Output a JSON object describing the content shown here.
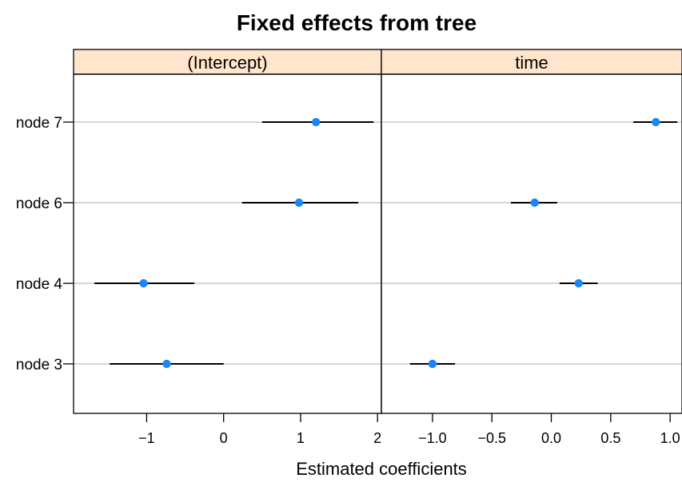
{
  "chart_data": {
    "type": "dotplot-with-intervals",
    "title": "Fixed effects from tree",
    "xlabel": "Estimated coefficients",
    "ylabel": "",
    "row_labels": [
      "node 7",
      "node 6",
      "node 4",
      "node 3"
    ],
    "grid": true,
    "panels": [
      {
        "name": "(Intercept)",
        "xlim": [
          -1.95,
          2.05
        ],
        "xticks": [
          -1,
          0,
          1,
          2
        ],
        "xtick_labels": [
          "−1",
          "0",
          "1",
          "2"
        ],
        "points": [
          {
            "row": "node 7",
            "estimate": 1.2,
            "lower": 0.5,
            "upper": 1.95
          },
          {
            "row": "node 6",
            "estimate": 0.98,
            "lower": 0.24,
            "upper": 1.75
          },
          {
            "row": "node 4",
            "estimate": -1.04,
            "lower": -1.68,
            "upper": -0.38
          },
          {
            "row": "node 3",
            "estimate": -0.74,
            "lower": -1.48,
            "upper": 0.0
          }
        ]
      },
      {
        "name": "time",
        "xlim": [
          -1.43,
          1.1
        ],
        "xticks": [
          -1.0,
          -0.5,
          0.0,
          0.5,
          1.0
        ],
        "xtick_labels": [
          "−1.0",
          "−0.5",
          "0.0",
          "0.5",
          "1.0"
        ],
        "points": [
          {
            "row": "node 7",
            "estimate": 0.88,
            "lower": 0.69,
            "upper": 1.06
          },
          {
            "row": "node 6",
            "estimate": -0.14,
            "lower": -0.34,
            "upper": 0.05
          },
          {
            "row": "node 4",
            "estimate": 0.23,
            "lower": 0.07,
            "upper": 0.39
          },
          {
            "row": "node 3",
            "estimate": -1.0,
            "lower": -1.19,
            "upper": -0.81
          }
        ]
      }
    ],
    "colors": {
      "point": "#1a87f5",
      "interval": "#000000",
      "gridline": "#bdbdbd",
      "strip": "#ffe5cc",
      "frame": "#000000"
    }
  }
}
